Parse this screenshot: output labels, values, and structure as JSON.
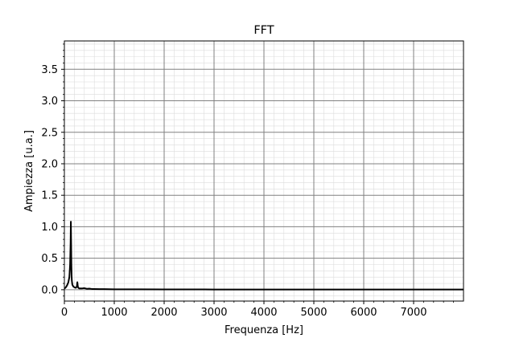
{
  "chart_data": {
    "type": "line",
    "title": "FFT",
    "xlabel": "Frequenza [Hz]",
    "ylabel": "Ampiezza [u.a.]",
    "xlim": [
      0,
      8000
    ],
    "ylim": [
      -0.18,
      3.95
    ],
    "xticks": [
      0,
      1000,
      2000,
      3000,
      4000,
      5000,
      6000,
      7000
    ],
    "xtick_labels": [
      "0",
      "1000",
      "2000",
      "3000",
      "4000",
      "5000",
      "6000",
      "7000"
    ],
    "yticks": [
      0.0,
      0.5,
      1.0,
      1.5,
      2.0,
      2.5,
      3.0,
      3.5
    ],
    "ytick_labels": [
      "0.0",
      "0.5",
      "1.0",
      "1.5",
      "2.0",
      "2.5",
      "3.0",
      "3.5"
    ],
    "grid": true,
    "minor_grid": true,
    "legend": "none",
    "series": [
      {
        "color": "#000000",
        "x": [
          0,
          20,
          40,
          60,
          80,
          100,
          115,
          125,
          130,
          135,
          140,
          145,
          150,
          160,
          180,
          200,
          230,
          250,
          260,
          270,
          280,
          300,
          350,
          400,
          450,
          500,
          550,
          600,
          700,
          800,
          1000,
          1500,
          2000,
          2500,
          3000,
          3500,
          4000,
          4500,
          5000,
          5500,
          6000,
          6500,
          7000,
          7500,
          8000
        ],
        "y": [
          0.02,
          0.03,
          0.05,
          0.08,
          0.12,
          0.2,
          0.4,
          0.75,
          1.08,
          0.75,
          0.4,
          0.22,
          0.14,
          0.08,
          0.05,
          0.04,
          0.03,
          0.05,
          0.12,
          0.05,
          0.03,
          0.02,
          0.02,
          0.025,
          0.015,
          0.018,
          0.012,
          0.012,
          0.01,
          0.009,
          0.007,
          0.006,
          0.005,
          0.005,
          0.004,
          0.004,
          0.004,
          0.004,
          0.004,
          0.004,
          0.004,
          0.004,
          0.004,
          0.004,
          0.004
        ]
      }
    ]
  }
}
